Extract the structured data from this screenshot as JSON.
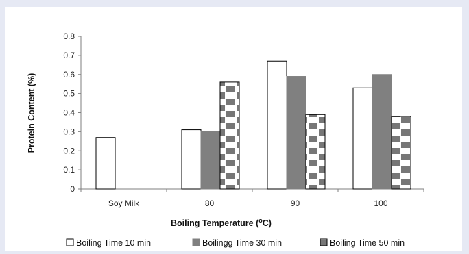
{
  "chart_data": {
    "type": "bar",
    "title": "",
    "xlabel": "Boiling Temperature (",
    "xlabel_sup": "o",
    "xlabel_end": "C)",
    "ylabel": "Protein Content (%)",
    "ylim": [
      0,
      0.8
    ],
    "ytick_labels": [
      "0",
      "0.1",
      "0.2",
      "0.3",
      "0.4",
      "0.5",
      "0.6",
      "0.7",
      "0.8"
    ],
    "categories": [
      "Soy Milk",
      "80",
      "90",
      "100"
    ],
    "series": [
      {
        "name": "Boiling Time 10 min",
        "values": [
          0.27,
          0.31,
          0.67,
          0.53
        ],
        "fill": "#ffffff",
        "pattern": "none"
      },
      {
        "name": "Boilingg Time 30 min",
        "values": [
          null,
          0.3,
          0.59,
          0.6
        ],
        "fill": "#808080",
        "pattern": "none"
      },
      {
        "name": "Boiling Time 50 min",
        "values": [
          null,
          0.56,
          0.39,
          0.38
        ],
        "fill": "#ffffff",
        "pattern": "hatch"
      }
    ],
    "grid": false,
    "legend_position": "bottom"
  }
}
